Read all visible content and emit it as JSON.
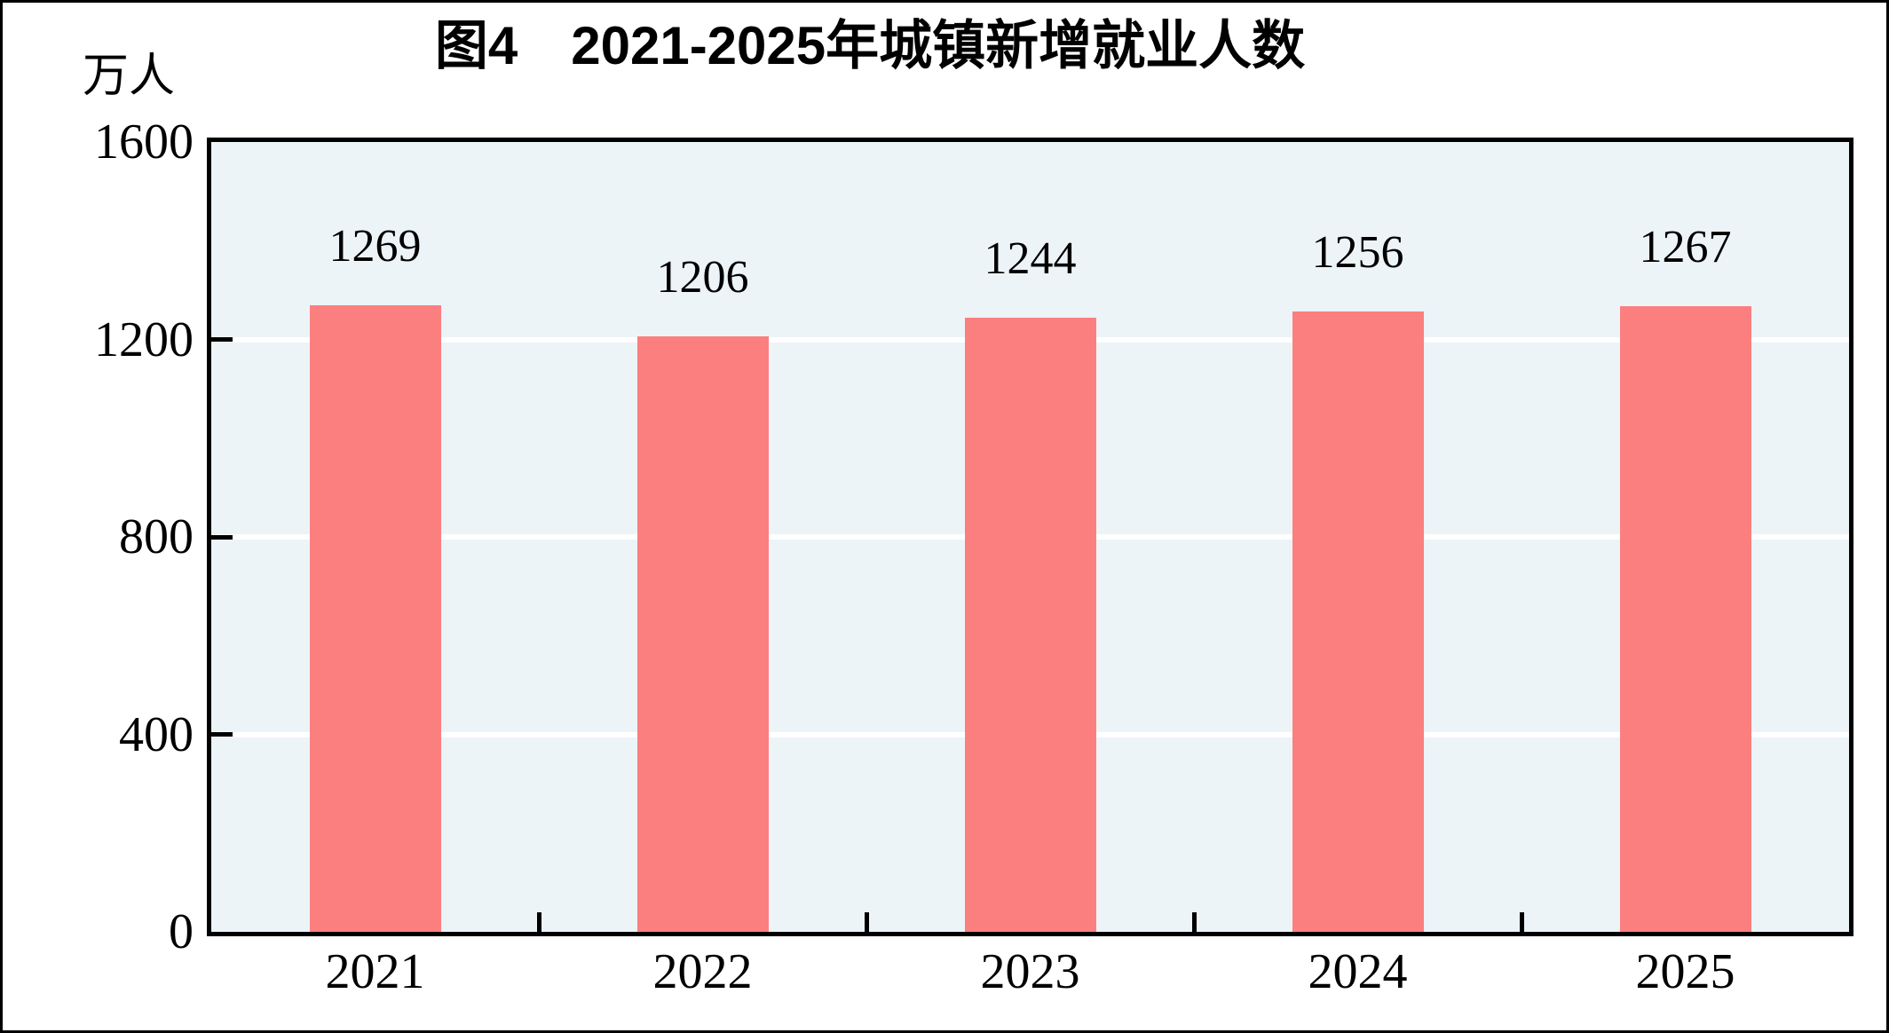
{
  "chart_data": {
    "type": "bar",
    "title": "图4　2021-2025年城镇新增就业人数",
    "categories": [
      "2021",
      "2022",
      "2023",
      "2024",
      "2025"
    ],
    "values": [
      1269,
      1206,
      1244,
      1256,
      1267
    ],
    "xlabel": "",
    "ylabel": "万人",
    "ylim": [
      0,
      1600
    ],
    "yticks": [
      0,
      400,
      800,
      1200,
      1600
    ],
    "show_value_labels": true,
    "grid": true,
    "legend_position": "none",
    "colors": {
      "bar": "#FC7F7F",
      "plot_background": "#EDF4F8",
      "gridline": "#FFFFFF",
      "axis": "#000000",
      "text": "#000000"
    }
  }
}
